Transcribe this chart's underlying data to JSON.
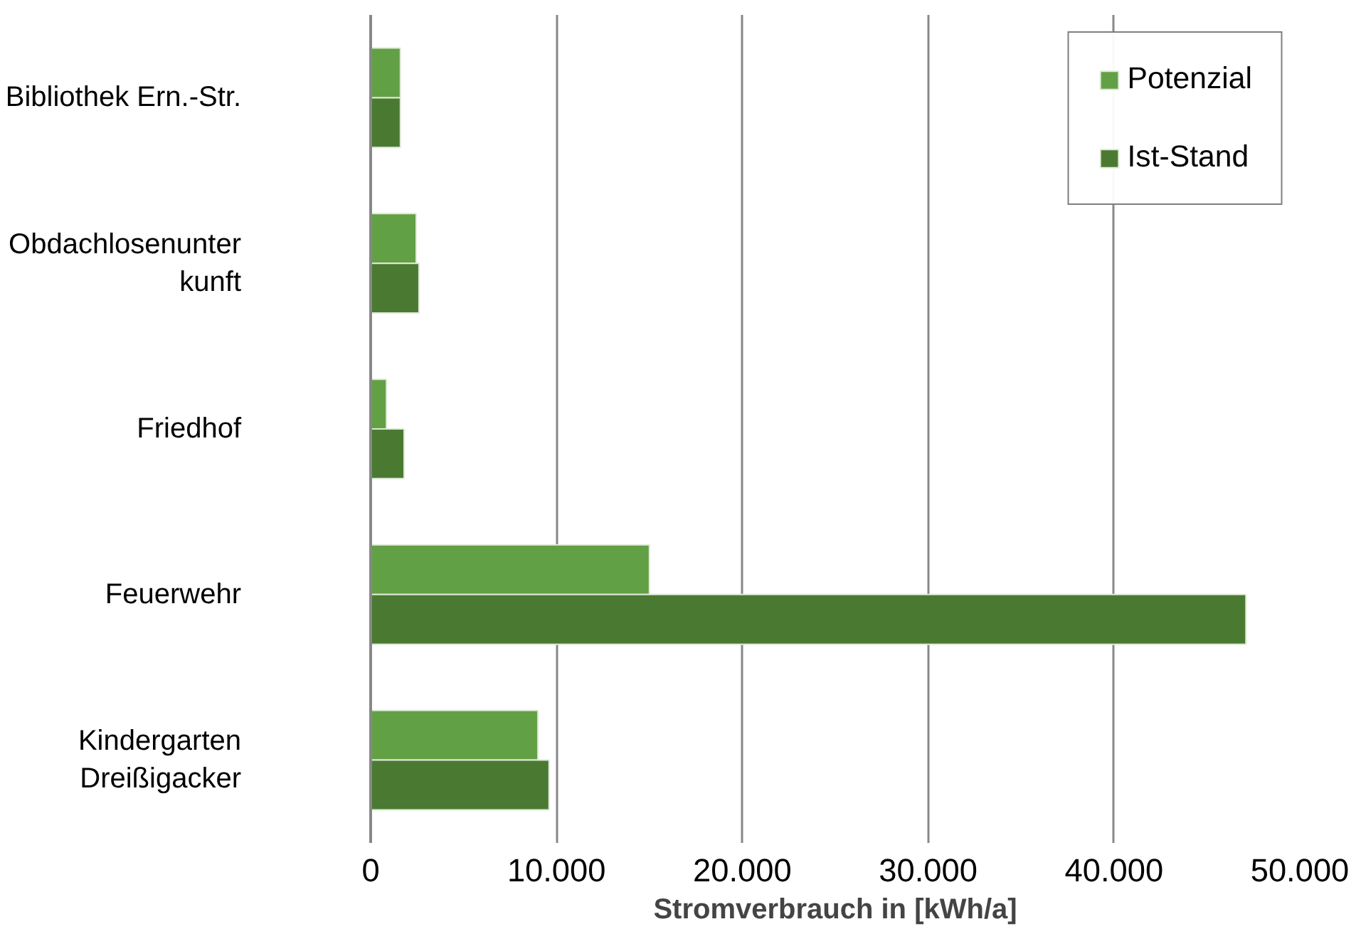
{
  "chart_data": {
    "type": "bar",
    "orientation": "horizontal",
    "xlabel": "Stromverbrauch in [kWh/a]",
    "categories": [
      "Bibliothek Ern.-Str.",
      "Obdachlosenunter\nkunft",
      "Friedhof",
      "Feuerwehr",
      "Kindergarten\nDreißigacker"
    ],
    "series": [
      {
        "name": "Potenzial",
        "color": "#62a046",
        "values": [
          1600,
          2450,
          850,
          15000,
          9000
        ]
      },
      {
        "name": "Ist-Stand",
        "color": "#4a7a32",
        "values": [
          1600,
          2600,
          1800,
          47100,
          9600
        ]
      }
    ],
    "xlim": [
      0,
      50000
    ],
    "xticks": [
      0,
      {
        "value": 10000,
        "label": "10.000"
      },
      {
        "value": 20000,
        "label": "20.000"
      },
      {
        "value": 30000,
        "label": "30.000"
      },
      {
        "value": 40000,
        "label": "40.000"
      },
      {
        "value": 50000,
        "label": "50.000"
      }
    ],
    "grid": "x",
    "legend": "top right"
  }
}
